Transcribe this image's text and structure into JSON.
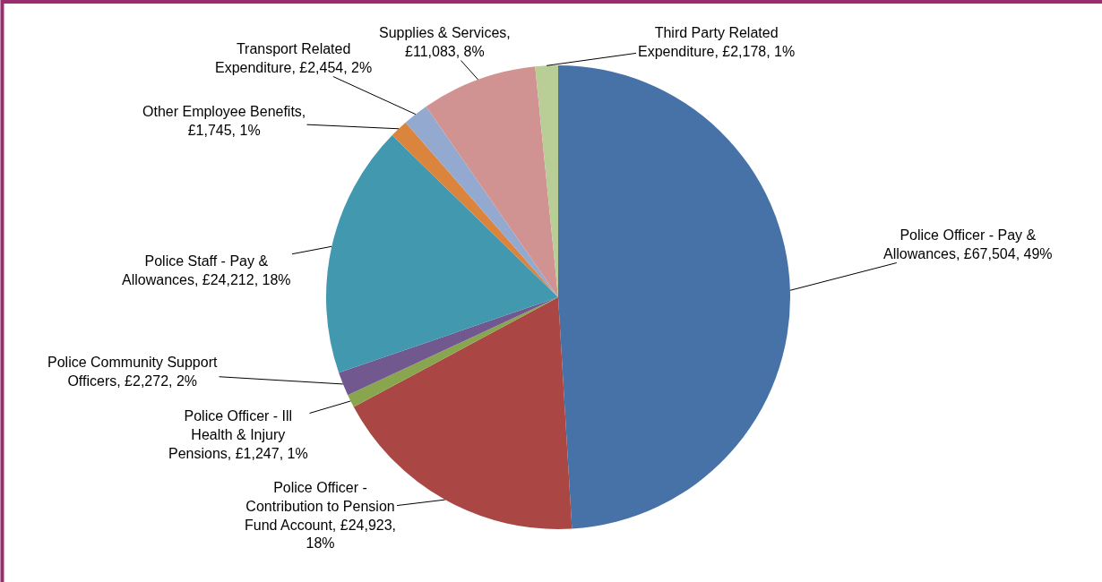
{
  "chart_data": {
    "type": "pie",
    "categories": [
      "Police Officer - Pay & Allowances, £67,504, 49%",
      "Police Officer - Contribution to Pension Fund Account, £24,923, 18%",
      "Police Officer - Ill Health & Injury Pensions, £1,247, 1%",
      "Police Community Support Officers, £2,272, 2%",
      "Police Staff - Pay & Allowances, £24,212, 18%",
      "Other Employee Benefits, £1,745, 1%",
      "Transport Related Expenditure, £2,454, 2%",
      "Supplies & Services, £11,083, 8%",
      "Third Party Related Expenditure, £2,178, 1%"
    ],
    "values": [
      67504,
      24923,
      1247,
      2272,
      24212,
      1745,
      2454,
      11083,
      2178
    ],
    "colors": [
      "#4672a8",
      "#aa4643",
      "#89a54e",
      "#71588f",
      "#4198af",
      "#db843d",
      "#93a9cf",
      "#d19392",
      "#b9cd96"
    ],
    "legend": false
  }
}
